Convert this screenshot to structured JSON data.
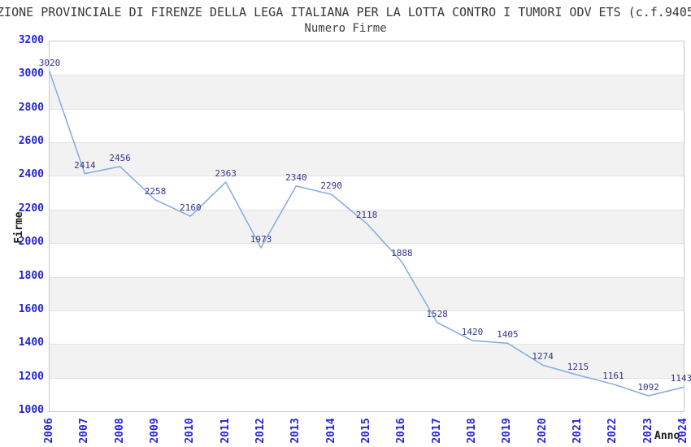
{
  "header": {
    "title": "ZIONE PROVINCIALE DI FIRENZE DELLA LEGA ITALIANA PER LA LOTTA CONTRO I TUMORI ODV ETS (c.f.9405",
    "subtitle": "Numero Firme"
  },
  "chart_data": {
    "type": "line",
    "title": "Numero Firme",
    "xlabel": "Anno",
    "ylabel": "Firme",
    "categories": [
      "2006",
      "2007",
      "2008",
      "2009",
      "2010",
      "2011",
      "2012",
      "2013",
      "2014",
      "2015",
      "2016",
      "2017",
      "2018",
      "2019",
      "2020",
      "2021",
      "2022",
      "2023",
      "2024"
    ],
    "values": [
      3020,
      2414,
      2456,
      2258,
      2160,
      2363,
      1973,
      2340,
      2290,
      2118,
      1888,
      1528,
      1420,
      1405,
      1274,
      1215,
      1161,
      1092,
      1143
    ],
    "ylim": [
      1000,
      3200
    ],
    "ytick_step": 200,
    "yticks": [
      3200,
      3000,
      2800,
      2600,
      2400,
      2200,
      2000,
      1800,
      1600,
      1400,
      1200,
      1000
    ],
    "grid": "horizontal-gridlines-with-alternating-bands",
    "legend_position": "none",
    "data_labels_visible": true
  },
  "colors": {
    "line": "#82aae2",
    "tick_label": "#2525d2",
    "data_label": "#34348c",
    "band_gray": "#f2f2f2",
    "gridline": "#e2e2e2",
    "plot_border": "#c9c9c9",
    "title_text": "#383838",
    "axis_label_text": "#1a1a1a",
    "background": "#ffffff"
  }
}
